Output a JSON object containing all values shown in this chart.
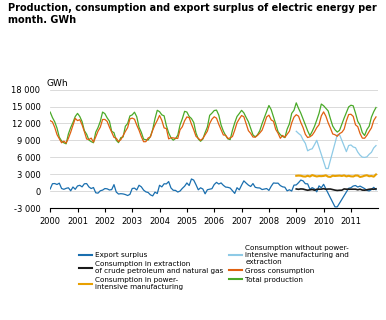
{
  "title": "Production, consumption and export surplus of electric energy per\nmonth. GWh",
  "ylabel": "GWh",
  "ylim": [
    -3000,
    18000
  ],
  "yticks": [
    -3000,
    0,
    3000,
    6000,
    9000,
    12000,
    15000,
    18000
  ],
  "ytick_labels": [
    "-3 000",
    "0",
    "3 000",
    "6 000",
    "9 000",
    "12 000",
    "15 000",
    "18 000"
  ],
  "colors": {
    "export_surplus": "#1a6faf",
    "oil_gas_consumption": "#1a1a1a",
    "power_intensive": "#e8a000",
    "consumption_without": "#8ecae6",
    "gross_consumption": "#e06010",
    "total_production": "#4aaa28"
  }
}
